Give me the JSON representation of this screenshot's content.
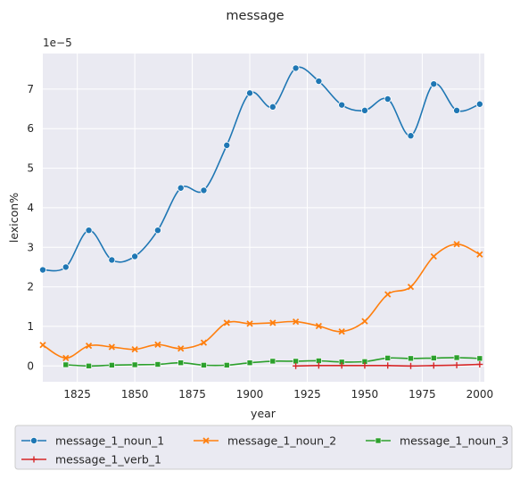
{
  "chart_data": {
    "type": "line",
    "title": "message",
    "xlabel": "year",
    "ylabel": "lexicon%",
    "y_scale_label": "1e−5",
    "xlim": [
      1810,
      2002
    ],
    "ylim": [
      -0.4,
      7.9
    ],
    "x_ticks": [
      1825,
      1850,
      1875,
      1900,
      1925,
      1950,
      1975,
      2000
    ],
    "y_ticks": [
      0,
      1,
      2,
      3,
      4,
      5,
      6,
      7
    ],
    "grid": true,
    "legend_position": "bottom",
    "series": [
      {
        "name": "message_1_noun_1",
        "color": "#1f77b4",
        "marker": "circle",
        "points": [
          [
            1810,
            2.43
          ],
          [
            1820,
            2.5
          ],
          [
            1830,
            3.43
          ],
          [
            1840,
            2.68
          ],
          [
            1850,
            2.77
          ],
          [
            1860,
            3.43
          ],
          [
            1870,
            4.5
          ],
          [
            1880,
            4.44
          ],
          [
            1890,
            5.58
          ],
          [
            1900,
            6.9
          ],
          [
            1910,
            6.55
          ],
          [
            1920,
            7.53
          ],
          [
            1930,
            7.2
          ],
          [
            1940,
            6.6
          ],
          [
            1950,
            6.46
          ],
          [
            1960,
            6.75
          ],
          [
            1970,
            5.82
          ],
          [
            1980,
            7.13
          ],
          [
            1990,
            6.46
          ],
          [
            2000,
            6.62
          ]
        ]
      },
      {
        "name": "message_1_noun_2",
        "color": "#ff7f0e",
        "marker": "x",
        "points": [
          [
            1810,
            0.53
          ],
          [
            1820,
            0.2
          ],
          [
            1830,
            0.51
          ],
          [
            1840,
            0.48
          ],
          [
            1850,
            0.42
          ],
          [
            1860,
            0.54
          ],
          [
            1870,
            0.44
          ],
          [
            1880,
            0.59
          ],
          [
            1890,
            1.09
          ],
          [
            1900,
            1.07
          ],
          [
            1910,
            1.09
          ],
          [
            1920,
            1.12
          ],
          [
            1930,
            1.01
          ],
          [
            1940,
            0.87
          ],
          [
            1950,
            1.13
          ],
          [
            1960,
            1.81
          ],
          [
            1970,
            2.0
          ],
          [
            1980,
            2.77
          ],
          [
            1990,
            3.08
          ],
          [
            2000,
            2.82
          ]
        ]
      },
      {
        "name": "message_1_noun_3",
        "color": "#2ca02c",
        "marker": "square",
        "points": [
          [
            1820,
            0.03
          ],
          [
            1830,
            0.0
          ],
          [
            1840,
            0.02
          ],
          [
            1850,
            0.03
          ],
          [
            1860,
            0.04
          ],
          [
            1870,
            0.08
          ],
          [
            1880,
            0.02
          ],
          [
            1890,
            0.02
          ],
          [
            1900,
            0.08
          ],
          [
            1910,
            0.12
          ],
          [
            1920,
            0.12
          ],
          [
            1930,
            0.13
          ],
          [
            1940,
            0.1
          ],
          [
            1950,
            0.11
          ],
          [
            1960,
            0.2
          ],
          [
            1970,
            0.19
          ],
          [
            1980,
            0.2
          ],
          [
            1990,
            0.21
          ],
          [
            2000,
            0.19
          ]
        ]
      },
      {
        "name": "message_1_verb_1",
        "color": "#d62728",
        "marker": "plus",
        "points": [
          [
            1920,
            0.0
          ],
          [
            1930,
            0.01
          ],
          [
            1940,
            0.01
          ],
          [
            1950,
            0.01
          ],
          [
            1960,
            0.01
          ],
          [
            1970,
            0.0
          ],
          [
            1980,
            0.01
          ],
          [
            1990,
            0.02
          ],
          [
            2000,
            0.04
          ]
        ]
      }
    ]
  }
}
